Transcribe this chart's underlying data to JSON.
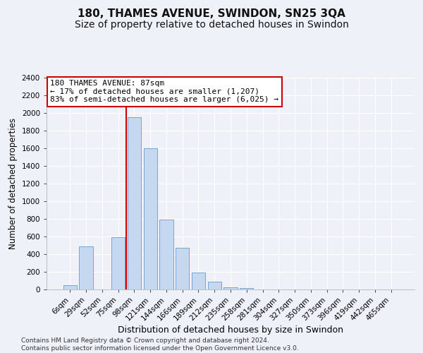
{
  "title": "180, THAMES AVENUE, SWINDON, SN25 3QA",
  "subtitle": "Size of property relative to detached houses in Swindon",
  "xlabel": "Distribution of detached houses by size in Swindon",
  "ylabel": "Number of detached properties",
  "categories": [
    "6sqm",
    "29sqm",
    "52sqm",
    "75sqm",
    "98sqm",
    "121sqm",
    "144sqm",
    "166sqm",
    "189sqm",
    "212sqm",
    "235sqm",
    "258sqm",
    "281sqm",
    "304sqm",
    "327sqm",
    "350sqm",
    "373sqm",
    "396sqm",
    "419sqm",
    "442sqm",
    "465sqm"
  ],
  "values": [
    50,
    490,
    0,
    590,
    1950,
    1600,
    790,
    470,
    195,
    85,
    28,
    18,
    0,
    0,
    0,
    0,
    0,
    0,
    0,
    0,
    0
  ],
  "bar_color": "#c5d8ef",
  "bar_edge_color": "#6699cc",
  "vline_color": "#cc0000",
  "annotation_text": "180 THAMES AVENUE: 87sqm\n← 17% of detached houses are smaller (1,207)\n83% of semi-detached houses are larger (6,025) →",
  "annotation_box_color": "#ffffff",
  "annotation_box_edge": "#cc0000",
  "ylim": [
    0,
    2400
  ],
  "yticks": [
    0,
    200,
    400,
    600,
    800,
    1000,
    1200,
    1400,
    1600,
    1800,
    2000,
    2200,
    2400
  ],
  "footer_line1": "Contains HM Land Registry data © Crown copyright and database right 2024.",
  "footer_line2": "Contains public sector information licensed under the Open Government Licence v3.0.",
  "bg_color": "#eef2f8",
  "title_fontsize": 11,
  "subtitle_fontsize": 10,
  "tick_fontsize": 7.5,
  "xlabel_fontsize": 9,
  "ylabel_fontsize": 8.5,
  "annotation_fontsize": 8,
  "footer_fontsize": 6.5,
  "vline_xindex": 4
}
